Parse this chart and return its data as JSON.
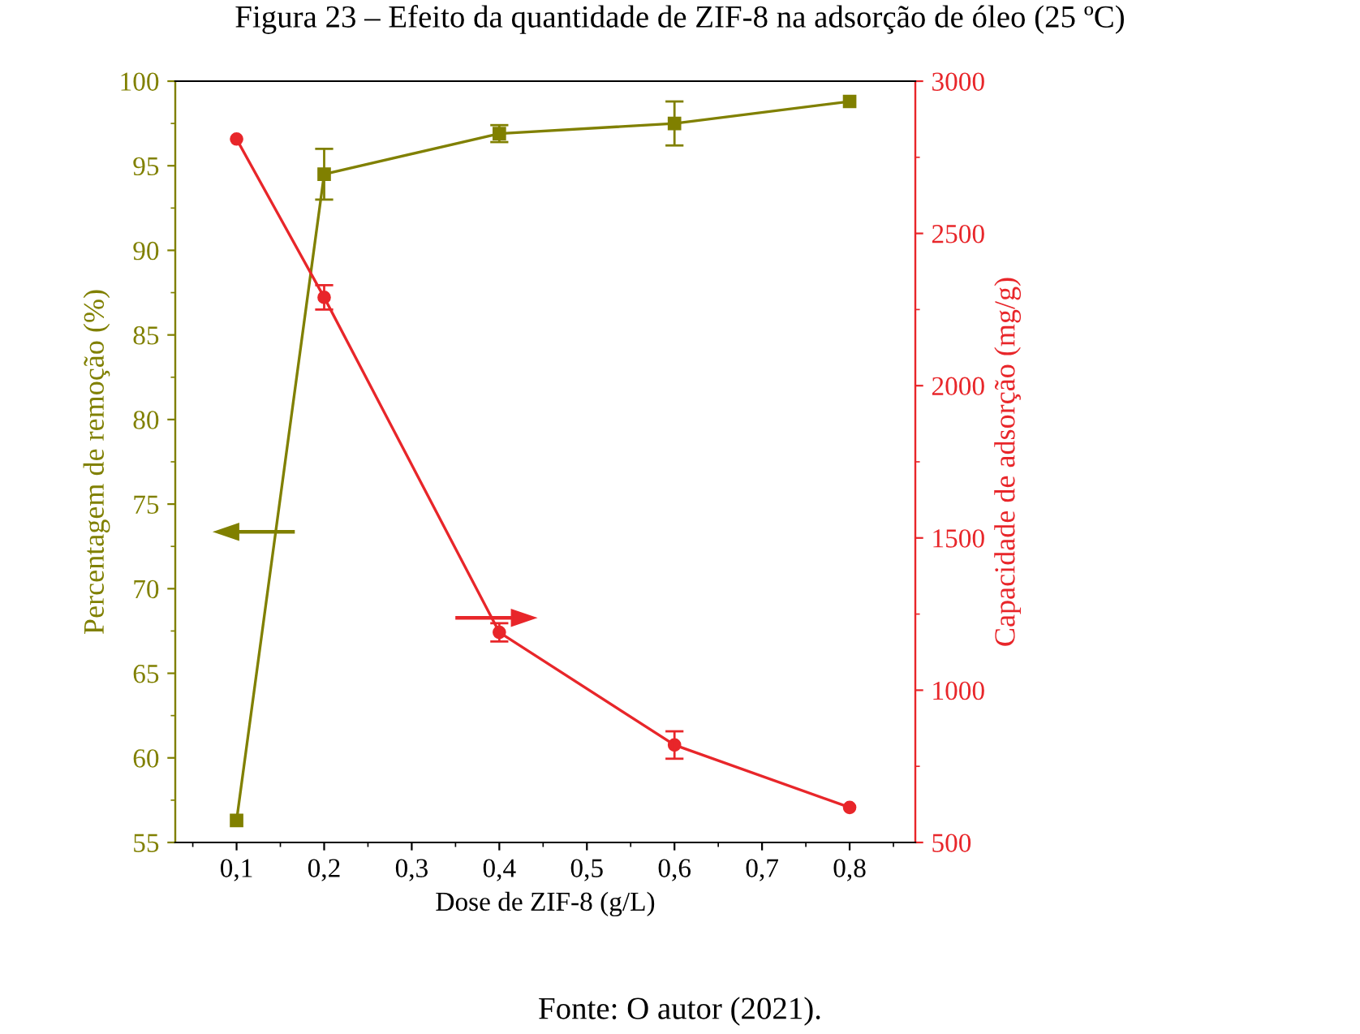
{
  "chart_data": {
    "type": "line",
    "title": "Figura 23 – Efeito da quantidade de ZIF-8 na adsorção de óleo (25 ºC)",
    "xlabel": "Dose de ZIF-8 (g/L)",
    "ylabel": "Percentagem de remoção (%)",
    "y2label": "Capacidade de adsorção (mg/g)",
    "annotations": [
      "Fonte: O autor (2021)."
    ],
    "x": [
      0.1,
      0.2,
      0.4,
      0.6,
      0.8
    ],
    "series": [
      {
        "color": "#808000",
        "values": [
          56.3,
          94.5,
          96.9,
          97.5,
          98.8
        ],
        "errors": [
          null,
          1.5,
          0.5,
          1.3,
          null
        ],
        "marker": "square"
      },
      {
        "color": "#e8262a",
        "values": [
          2810,
          2290,
          1190,
          820,
          615
        ],
        "errors": [
          null,
          40,
          30,
          45,
          null
        ],
        "marker": "circle",
        "axis": "y2"
      }
    ],
    "xlim": [
      0.03,
      0.875
    ],
    "xticks": [
      {
        "value": 0.1,
        "label": "0,1"
      },
      {
        "value": 0.2,
        "label": "0,2"
      },
      {
        "value": 0.3,
        "label": "0,3"
      },
      {
        "value": 0.4,
        "label": "0,4"
      },
      {
        "value": 0.5,
        "label": "0,5"
      },
      {
        "value": 0.6,
        "label": "0,6"
      },
      {
        "value": 0.7,
        "label": "0,7"
      },
      {
        "value": 0.8,
        "label": "0,8"
      }
    ],
    "ylim": [
      55,
      100
    ],
    "yticks": [
      55,
      60,
      65,
      70,
      75,
      80,
      85,
      90,
      95,
      100
    ],
    "y2lim": [
      500,
      3000
    ],
    "y2ticks": [
      500,
      1000,
      1500,
      2000,
      2500,
      3000
    ],
    "grid": false,
    "legend": false,
    "line_style": "solid"
  }
}
